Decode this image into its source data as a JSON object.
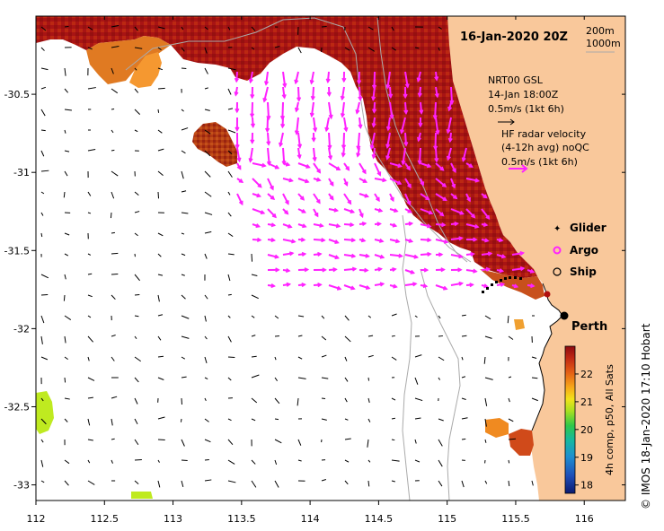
{
  "title": "16-Jan-2020 20Z",
  "depth_contours": [
    "200m",
    "1000m"
  ],
  "gsl_legend": {
    "line1": "NRT00 GSL",
    "line2": "14-Jan 18:00Z",
    "line3": "0.5m/s (1kt 6h)"
  },
  "hf_legend": {
    "line1": "HF radar velocity",
    "line2": "(4-12h avg) noQC",
    "line3": "0.5m/s (1kt 6h)"
  },
  "platforms": {
    "glider": "Glider",
    "argo": "Argo",
    "ship": "Ship"
  },
  "place_label": "Perth",
  "colorbar": {
    "label": "4h comp, p50, All Sats",
    "ticks": [
      "22",
      "21",
      "20",
      "19",
      "18"
    ],
    "min": 17.7,
    "max": 23.0
  },
  "credit": "© IMOS 18-Jan-2020 17:10 Hobart",
  "axes": {
    "x_ticks": [
      "112",
      "112.5",
      "113",
      "113.5",
      "114",
      "114.5",
      "115",
      "115.5",
      "116"
    ],
    "y_ticks": [
      "-30.5",
      "-31",
      "-31.5",
      "-32",
      "-32.5",
      "-33"
    ],
    "xlim": [
      112,
      116.3
    ],
    "ylim": [
      -33.1,
      -30.0
    ]
  },
  "colors": {
    "land": "#F9C89B",
    "gsl_arrow": "#000000",
    "hf_arrow": "#FF22FF",
    "sst_warm": "#A01010",
    "sst_mid": "#CC5511",
    "sst_orange": "#F08A20",
    "sst_yellow": "#BFEA20"
  }
}
